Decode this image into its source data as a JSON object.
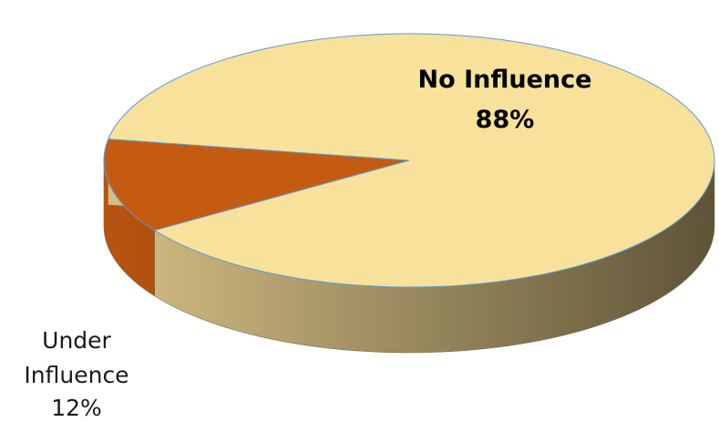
{
  "chart_data": {
    "type": "pie",
    "title": "",
    "categories": [
      "No Influence",
      "Under Influence"
    ],
    "values": [
      88,
      12
    ],
    "unit": "%",
    "colors": {
      "No Influence": "#f8e19a",
      "Under Influence": "#c55a11"
    },
    "labels": {
      "no_influence": {
        "name": "No Influence",
        "percent": "88%"
      },
      "under_influence": {
        "name_line1": "Under",
        "name_line2": "Influence",
        "percent": "12%"
      }
    },
    "legend": "none",
    "style": "3d"
  }
}
